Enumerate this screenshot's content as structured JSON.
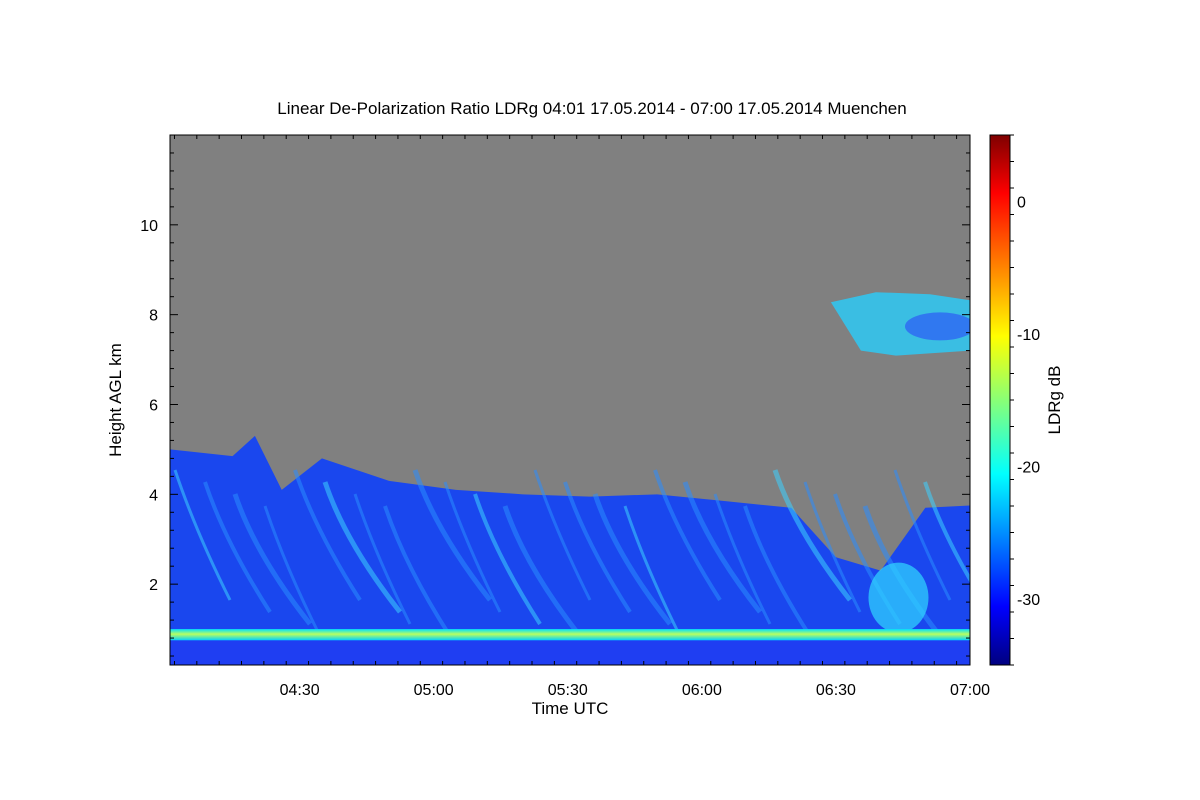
{
  "chart_data": {
    "type": "heatmap",
    "title": "Linear De-Polarization Ratio LDRg   04:01 17.05.2014 - 07:00 17.05.2014 Muenchen",
    "xlabel": "Time UTC",
    "ylabel": "Height AGL km",
    "x_ticks": [
      "04:30",
      "05:00",
      "05:30",
      "06:00",
      "06:30",
      "07:00"
    ],
    "x_range_min": [
      241,
      420
    ],
    "y_ticks": [
      2,
      4,
      6,
      8,
      10
    ],
    "y_range_km": [
      0.2,
      12.0
    ],
    "background_no_signal_color": "#808080",
    "colorbar": {
      "label": "LDRg dB",
      "range": [
        -35,
        5
      ],
      "ticks": [
        0,
        -10,
        -20,
        -30
      ],
      "colormap": "jet"
    },
    "features": {
      "boundary_layer_band_km": [
        0.75,
        1.0
      ],
      "aerosol_layer_top_profile": [
        {
          "t_min": 241,
          "h_km": 5.0
        },
        {
          "t_min": 255,
          "h_km": 4.85
        },
        {
          "t_min": 260,
          "h_km": 5.3
        },
        {
          "t_min": 266,
          "h_km": 4.1
        },
        {
          "t_min": 275,
          "h_km": 4.8
        },
        {
          "t_min": 290,
          "h_km": 4.3
        },
        {
          "t_min": 305,
          "h_km": 4.1
        },
        {
          "t_min": 320,
          "h_km": 4.0
        },
        {
          "t_min": 335,
          "h_km": 3.95
        },
        {
          "t_min": 350,
          "h_km": 4.0
        },
        {
          "t_min": 365,
          "h_km": 3.85
        },
        {
          "t_min": 380,
          "h_km": 3.7
        },
        {
          "t_min": 390,
          "h_km": 2.6
        },
        {
          "t_min": 400,
          "h_km": 2.3
        },
        {
          "t_min": 410,
          "h_km": 3.7
        },
        {
          "t_min": 420,
          "h_km": 3.75
        }
      ],
      "upper_cloud": {
        "t_min": [
          390,
          420
        ],
        "h_km": [
          7.2,
          8.5
        ],
        "ldr_db": -22
      }
    }
  }
}
